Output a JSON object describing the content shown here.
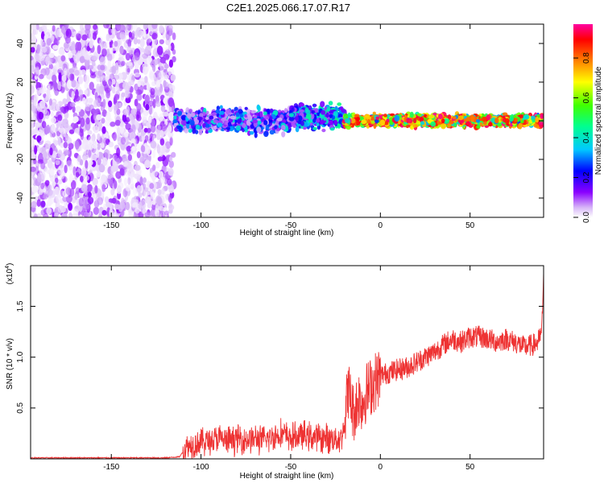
{
  "title": "C2E1.2025.066.17.07.R17",
  "chart_data": [
    {
      "type": "heatmap",
      "xlabel": "Height of straight line (km)",
      "ylabel": "Frequency (Hz)",
      "xlim": [
        -195,
        91
      ],
      "ylim": [
        -50,
        50
      ],
      "xticks": [
        -150,
        -100,
        -50,
        0,
        50
      ],
      "yticks": [
        -40,
        -20,
        0,
        20,
        40
      ],
      "colorbar": {
        "label": "Normalized spectral amplitude",
        "range": [
          0,
          0.97
        ],
        "ticks": [
          "0.0",
          "0.2",
          "0.4",
          "0.6",
          "0.8"
        ],
        "tick_values": [
          0.0,
          0.2,
          0.4,
          0.6,
          0.8
        ],
        "colors": [
          "#ffffff",
          "#d8b8f8",
          "#8a00ff",
          "#0000ff",
          "#00c8ff",
          "#00ff90",
          "#40ff00",
          "#ffff00",
          "#ff8000",
          "#ff0000",
          "#ff00a0"
        ]
      },
      "regions": [
        {
          "x": [
            -195,
            -115
          ],
          "freq": [
            -50,
            50
          ],
          "amplitude": [
            0.02,
            0.2
          ]
        },
        {
          "x": [
            -115,
            -50
          ],
          "freq": [
            -8,
            8
          ],
          "amplitude": [
            0.1,
            0.45
          ]
        },
        {
          "x": [
            -50,
            -20
          ],
          "freq": [
            -6,
            10
          ],
          "amplitude": [
            0.15,
            0.5
          ]
        },
        {
          "x": [
            -20,
            91
          ],
          "freq": [
            -4,
            4
          ],
          "amplitude": [
            0.3,
            0.97
          ]
        }
      ]
    },
    {
      "type": "line",
      "xlabel": "Height of straight line (km)",
      "ylabel": "SNR (10 * v/v)",
      "multiplier": "(x10",
      "multiplier_exp": "4",
      "xlim": [
        -195,
        91
      ],
      "ylim": [
        0,
        1.9
      ],
      "xticks": [
        -150,
        -100,
        -50,
        0,
        50
      ],
      "yticks": [
        "0.5",
        "1.0",
        "1.5"
      ],
      "ytick_values": [
        0.5,
        1.0,
        1.5
      ],
      "color": "#ee3333",
      "series": [
        {
          "x": [
            -195,
            -180,
            -160,
            -140,
            -120,
            -112,
            -108,
            -104,
            -100,
            -95,
            -90,
            -85,
            -80,
            -75,
            -70,
            -65,
            -60,
            -55,
            -50,
            -45,
            -40,
            -35,
            -30,
            -25,
            -22,
            -20,
            -18,
            -15,
            -12,
            -10,
            -8,
            -5,
            -2,
            0,
            5,
            10,
            15,
            20,
            25,
            30,
            35,
            40,
            45,
            50,
            55,
            60,
            65,
            70,
            75,
            80,
            85,
            88,
            90,
            91
          ],
          "y": [
            0.01,
            0.01,
            0.01,
            0.01,
            0.01,
            0.02,
            0.12,
            0.15,
            0.17,
            0.18,
            0.2,
            0.17,
            0.2,
            0.19,
            0.2,
            0.18,
            0.22,
            0.25,
            0.2,
            0.23,
            0.22,
            0.21,
            0.2,
            0.2,
            0.2,
            0.35,
            0.7,
            0.45,
            0.6,
            0.55,
            0.65,
            0.72,
            0.78,
            0.82,
            0.85,
            0.88,
            0.9,
            0.95,
            1.0,
            1.05,
            1.12,
            1.18,
            1.15,
            1.2,
            1.2,
            1.18,
            1.15,
            1.18,
            1.15,
            1.1,
            1.12,
            1.15,
            1.25,
            1.85
          ]
        }
      ]
    }
  ]
}
